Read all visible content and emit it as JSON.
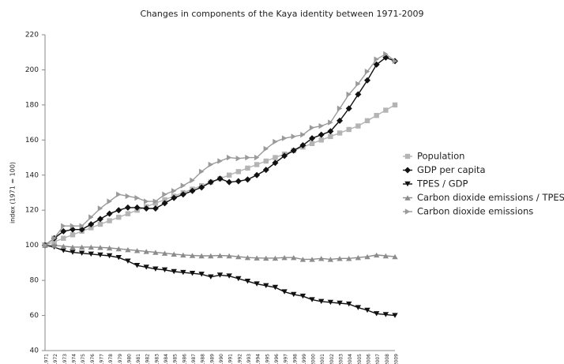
{
  "chart_data": {
    "type": "line",
    "title": "Changes in components of the Kaya identity between 1971-2009",
    "y_label": "index (1971 = 100)",
    "categories": [
      "1971",
      "1972",
      "1973",
      "1974",
      "1975",
      "1976",
      "1977",
      "1978",
      "1979",
      "1980",
      "1981",
      "1982",
      "1983",
      "1984",
      "1985",
      "1986",
      "1987",
      "1988",
      "1989",
      "1990",
      "1991",
      "1992",
      "1993",
      "1994",
      "1995",
      "1996",
      "1997",
      "1998",
      "1999",
      "2000",
      "2001",
      "2002",
      "2003",
      "2004",
      "2005",
      "2006",
      "2007",
      "2008",
      "2009"
    ],
    "ylim": [
      40,
      220
    ],
    "yticks": [
      40,
      60,
      80,
      100,
      120,
      140,
      160,
      180,
      200,
      220
    ],
    "grid": false,
    "legend": "right",
    "series": [
      {
        "name": "Population",
        "color": "#b4b4b4",
        "marker": "square",
        "values": [
          100,
          102,
          104,
          106,
          108,
          110,
          112,
          114,
          116,
          118,
          120,
          122,
          124,
          126,
          128,
          130,
          132,
          134,
          136,
          138,
          140,
          142,
          144,
          146,
          148,
          150,
          152,
          154,
          156,
          158,
          160,
          162,
          164,
          166,
          168,
          171,
          174,
          177,
          180
        ]
      },
      {
        "name": "GDP per capita",
        "color": "#111111",
        "marker": "diamond",
        "values": [
          100,
          104,
          108,
          109,
          109,
          112,
          115,
          118,
          120,
          121.5,
          121.5,
          121,
          121,
          124,
          127,
          129,
          131,
          133,
          136,
          138,
          136,
          136.5,
          137.5,
          140,
          143,
          147,
          151,
          154,
          157,
          161,
          163,
          165,
          171,
          178,
          186,
          194,
          203,
          207,
          205
        ]
      },
      {
        "name": "TPES / GDP",
        "color": "#111111",
        "marker": "triangle-down",
        "values": [
          100,
          99,
          97,
          96,
          95.5,
          95,
          94.5,
          94,
          93,
          91,
          88.5,
          87.5,
          86.5,
          86,
          85,
          84.5,
          84,
          83.5,
          82,
          83,
          82.5,
          81,
          79.5,
          78,
          77,
          76,
          73.5,
          72,
          71,
          69,
          68,
          67.5,
          67,
          66.5,
          64.5,
          63,
          61,
          60.5,
          60
        ]
      },
      {
        "name": "Carbon dioxide emissions / TPES",
        "color": "#8c8c8c",
        "marker": "triangle-up",
        "values": [
          100,
          100,
          99.5,
          99,
          99,
          99,
          98.8,
          98.5,
          98,
          97.5,
          97,
          96.5,
          96,
          95.5,
          95,
          94.5,
          94.2,
          94,
          94,
          94.2,
          94,
          93.5,
          93,
          92.8,
          92.7,
          92.7,
          93,
          93,
          92,
          92,
          92.5,
          92,
          92.5,
          92.5,
          93,
          93.5,
          94.5,
          94,
          93.5
        ]
      },
      {
        "name": "Carbon dioxide emissions",
        "color": "#9a9a9a",
        "marker": "triangle-right",
        "values": [
          100,
          104,
          111,
          111,
          111,
          116,
          121,
          125,
          129,
          128,
          127,
          125,
          125,
          129,
          131,
          134,
          137,
          142,
          146,
          148,
          150,
          149.5,
          150,
          150,
          155,
          159,
          161,
          162,
          163,
          167,
          168,
          170,
          178,
          186,
          192,
          199,
          206,
          209,
          205
        ]
      }
    ]
  }
}
